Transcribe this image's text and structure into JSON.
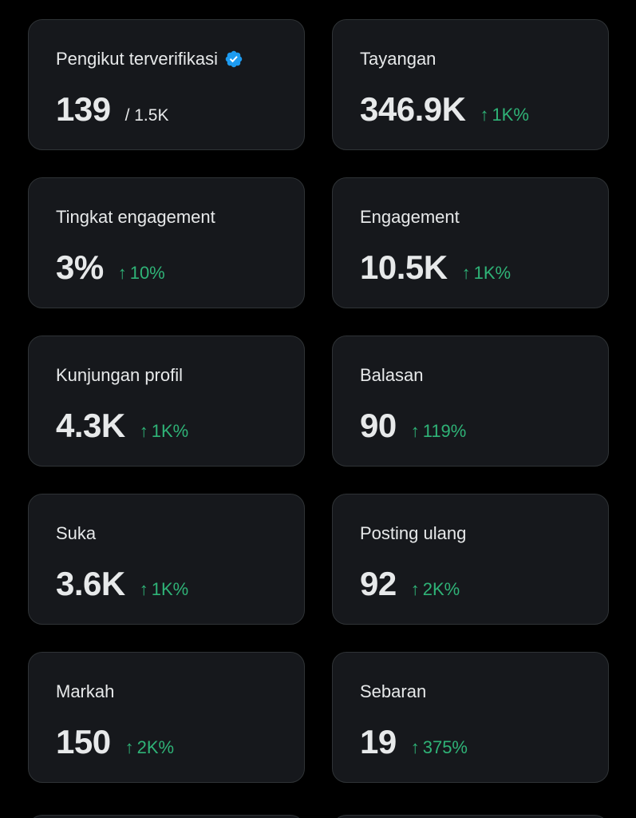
{
  "accent_positive": "#2fb377",
  "verified_color": "#1d9bf0",
  "cards": [
    {
      "label": "Pengikut terverifikasi",
      "value": "139",
      "secondary": "/ 1.5K",
      "verified_icon": "verified-badge-icon"
    },
    {
      "label": "Tayangan",
      "value": "346.9K",
      "change": "1K%",
      "direction": "up"
    },
    {
      "label": "Tingkat engagement",
      "value": "3%",
      "change": "10%",
      "direction": "up"
    },
    {
      "label": "Engagement",
      "value": "10.5K",
      "change": "1K%",
      "direction": "up"
    },
    {
      "label": "Kunjungan profil",
      "value": "4.3K",
      "change": "1K%",
      "direction": "up"
    },
    {
      "label": "Balasan",
      "value": "90",
      "change": "119%",
      "direction": "up"
    },
    {
      "label": "Suka",
      "value": "3.6K",
      "change": "1K%",
      "direction": "up"
    },
    {
      "label": "Posting ulang",
      "value": "92",
      "change": "2K%",
      "direction": "up"
    },
    {
      "label": "Markah",
      "value": "150",
      "change": "2K%",
      "direction": "up"
    },
    {
      "label": "Sebaran",
      "value": "19",
      "change": "375%",
      "direction": "up"
    }
  ],
  "arrow_glyph": "↑"
}
